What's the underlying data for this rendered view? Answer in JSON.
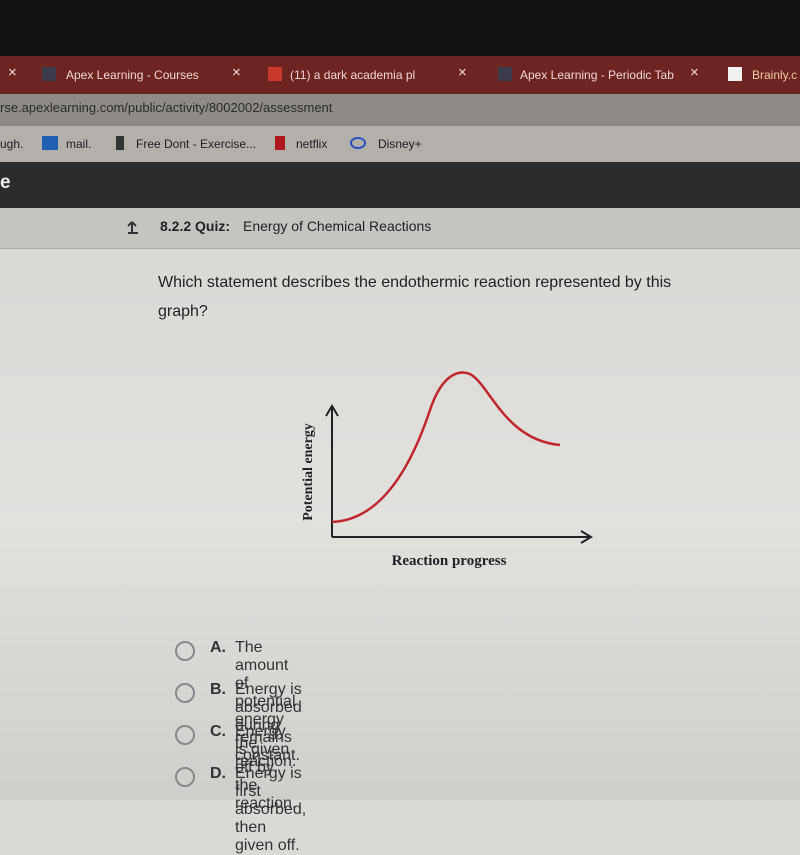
{
  "browser": {
    "tabs": [
      {
        "title": "Apex Learning - Courses"
      },
      {
        "title": "(11) a dark academia pl"
      },
      {
        "title": "Apex Learning - Periodic Tab"
      },
      {
        "title": "Brainly.c"
      }
    ],
    "url": "rse.apexlearning.com/public/activity/8002002/assessment",
    "bookmarks": [
      "ugh.",
      "mail.",
      "Free Dont - Exercise...",
      "netflix",
      "Disney+"
    ]
  },
  "app_header": {
    "title": "e"
  },
  "quiz": {
    "label": "8.2.2 Quiz:",
    "title": "Energy of Chemical Reactions"
  },
  "question": {
    "text": "Which statement describes the endothermic reaction represented by this graph?"
  },
  "diagram": {
    "y_label": "Potential energy",
    "x_label": "Reaction progress"
  },
  "choices": [
    {
      "letter": "A.",
      "text": "The amount of potential energy remains constant."
    },
    {
      "letter": "B.",
      "text": "Energy is absorbed during the reaction."
    },
    {
      "letter": "C.",
      "text": "Energy is given off by the reaction."
    },
    {
      "letter": "D.",
      "text": "Energy is first absorbed, then given off."
    }
  ]
}
